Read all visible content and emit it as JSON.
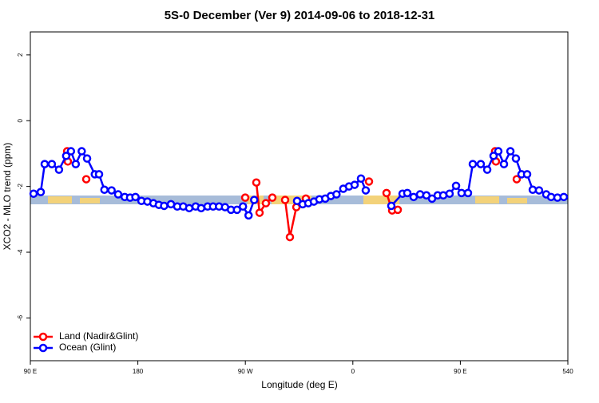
{
  "chart_data": {
    "type": "line",
    "title": "5S-0 December (Ver 9)   2014-09-06 to 2018-12-31",
    "x_label": "Longitude (deg E)",
    "y_label": "XCO2 - MLO trend (ppm)",
    "xlim": [
      90,
      540
    ],
    "ylim": [
      -7.3,
      2.7
    ],
    "xticks": [
      {
        "value": 90,
        "label": "90 E"
      },
      180,
      {
        "value": 270,
        "label": "90 W"
      },
      {
        "value": 360,
        "label": "0"
      },
      {
        "value": 450,
        "label": "90 E"
      },
      540
    ],
    "yticks": [
      -6,
      -4,
      -2,
      0,
      2
    ],
    "legend": "bottom-left",
    "series": [
      {
        "name": "Land (Nadir&Glint)",
        "color": "#ff0000",
        "x": [
          120.8,
          121.4,
          null,
          136.8,
          null,
          269.9,
          null,
          279.2,
          281.9,
          287.2,
          292.6,
          null,
          303.3,
          307.3,
          312.7,
          null,
          320.7,
          null,
          373.5,
          null,
          388.2,
          392.9,
          397.6,
          null,
          479.1,
          479.8,
          null,
          497.2
        ],
        "values": [
          -0.93,
          -1.24,
          null,
          -1.78,
          null,
          -2.34,
          null,
          -1.88,
          -2.8,
          -2.51,
          -2.34,
          null,
          -2.41,
          -3.54,
          -2.63,
          null,
          -2.37,
          null,
          -1.85,
          null,
          -2.2,
          -2.73,
          -2.71,
          null,
          -0.93,
          -1.24,
          null,
          -1.78
        ]
      },
      {
        "name": "Ocean (Glint)",
        "color": "#0000ff",
        "x": [
          92.7,
          98.7,
          102,
          108,
          114,
          120,
          124,
          128,
          133,
          137.5,
          144,
          147.5,
          152,
          158,
          163.5,
          169,
          173.5,
          178,
          183,
          188,
          193,
          197.6,
          202,
          207.7,
          213,
          218,
          223,
          228.4,
          233,
          238.4,
          243,
          248,
          253,
          258,
          263,
          268,
          272.7,
          277.4,
          null,
          313.3,
          318,
          322.7,
          327.4,
          332,
          336.9,
          341.6,
          346.3,
          352,
          356.8,
          361.5,
          366.8,
          370.8,
          null,
          392.2,
          401.6,
          405.6,
          410.9,
          416.3,
          421.6,
          426.3,
          431,
          435.7,
          441,
          446.4,
          451,
          456.4,
          460.4,
          467.1,
          472.5,
          477.8,
          481.8,
          486.5,
          491.9,
          496.5,
          501.2,
          505.9,
          510.6,
          515.9,
          521.9,
          526,
          531.3,
          536.6
        ],
        "values": [
          -2.22,
          -2.17,
          -1.32,
          -1.32,
          -1.49,
          -1.07,
          -0.93,
          -1.32,
          -0.93,
          -1.15,
          -1.63,
          -1.63,
          -2.1,
          -2.12,
          -2.24,
          -2.32,
          -2.34,
          -2.32,
          -2.44,
          -2.46,
          -2.51,
          -2.56,
          -2.59,
          -2.54,
          -2.61,
          -2.61,
          -2.66,
          -2.61,
          -2.66,
          -2.61,
          -2.61,
          -2.61,
          -2.63,
          -2.71,
          -2.71,
          -2.61,
          -2.88,
          -2.41,
          null,
          -2.44,
          -2.54,
          -2.51,
          -2.46,
          -2.39,
          -2.37,
          -2.29,
          -2.24,
          -2.07,
          -2.0,
          -1.95,
          -1.76,
          -2.12,
          null,
          -2.59,
          -2.22,
          -2.2,
          -2.32,
          -2.24,
          -2.27,
          -2.37,
          -2.27,
          -2.27,
          -2.22,
          -1.98,
          -2.2,
          -2.2,
          -1.32,
          -1.32,
          -1.49,
          -1.07,
          -0.93,
          -1.32,
          -0.93,
          -1.15,
          -1.63,
          -1.63,
          -2.1,
          -2.12,
          -2.24,
          -2.32,
          -2.34,
          -2.32
        ]
      }
    ]
  }
}
